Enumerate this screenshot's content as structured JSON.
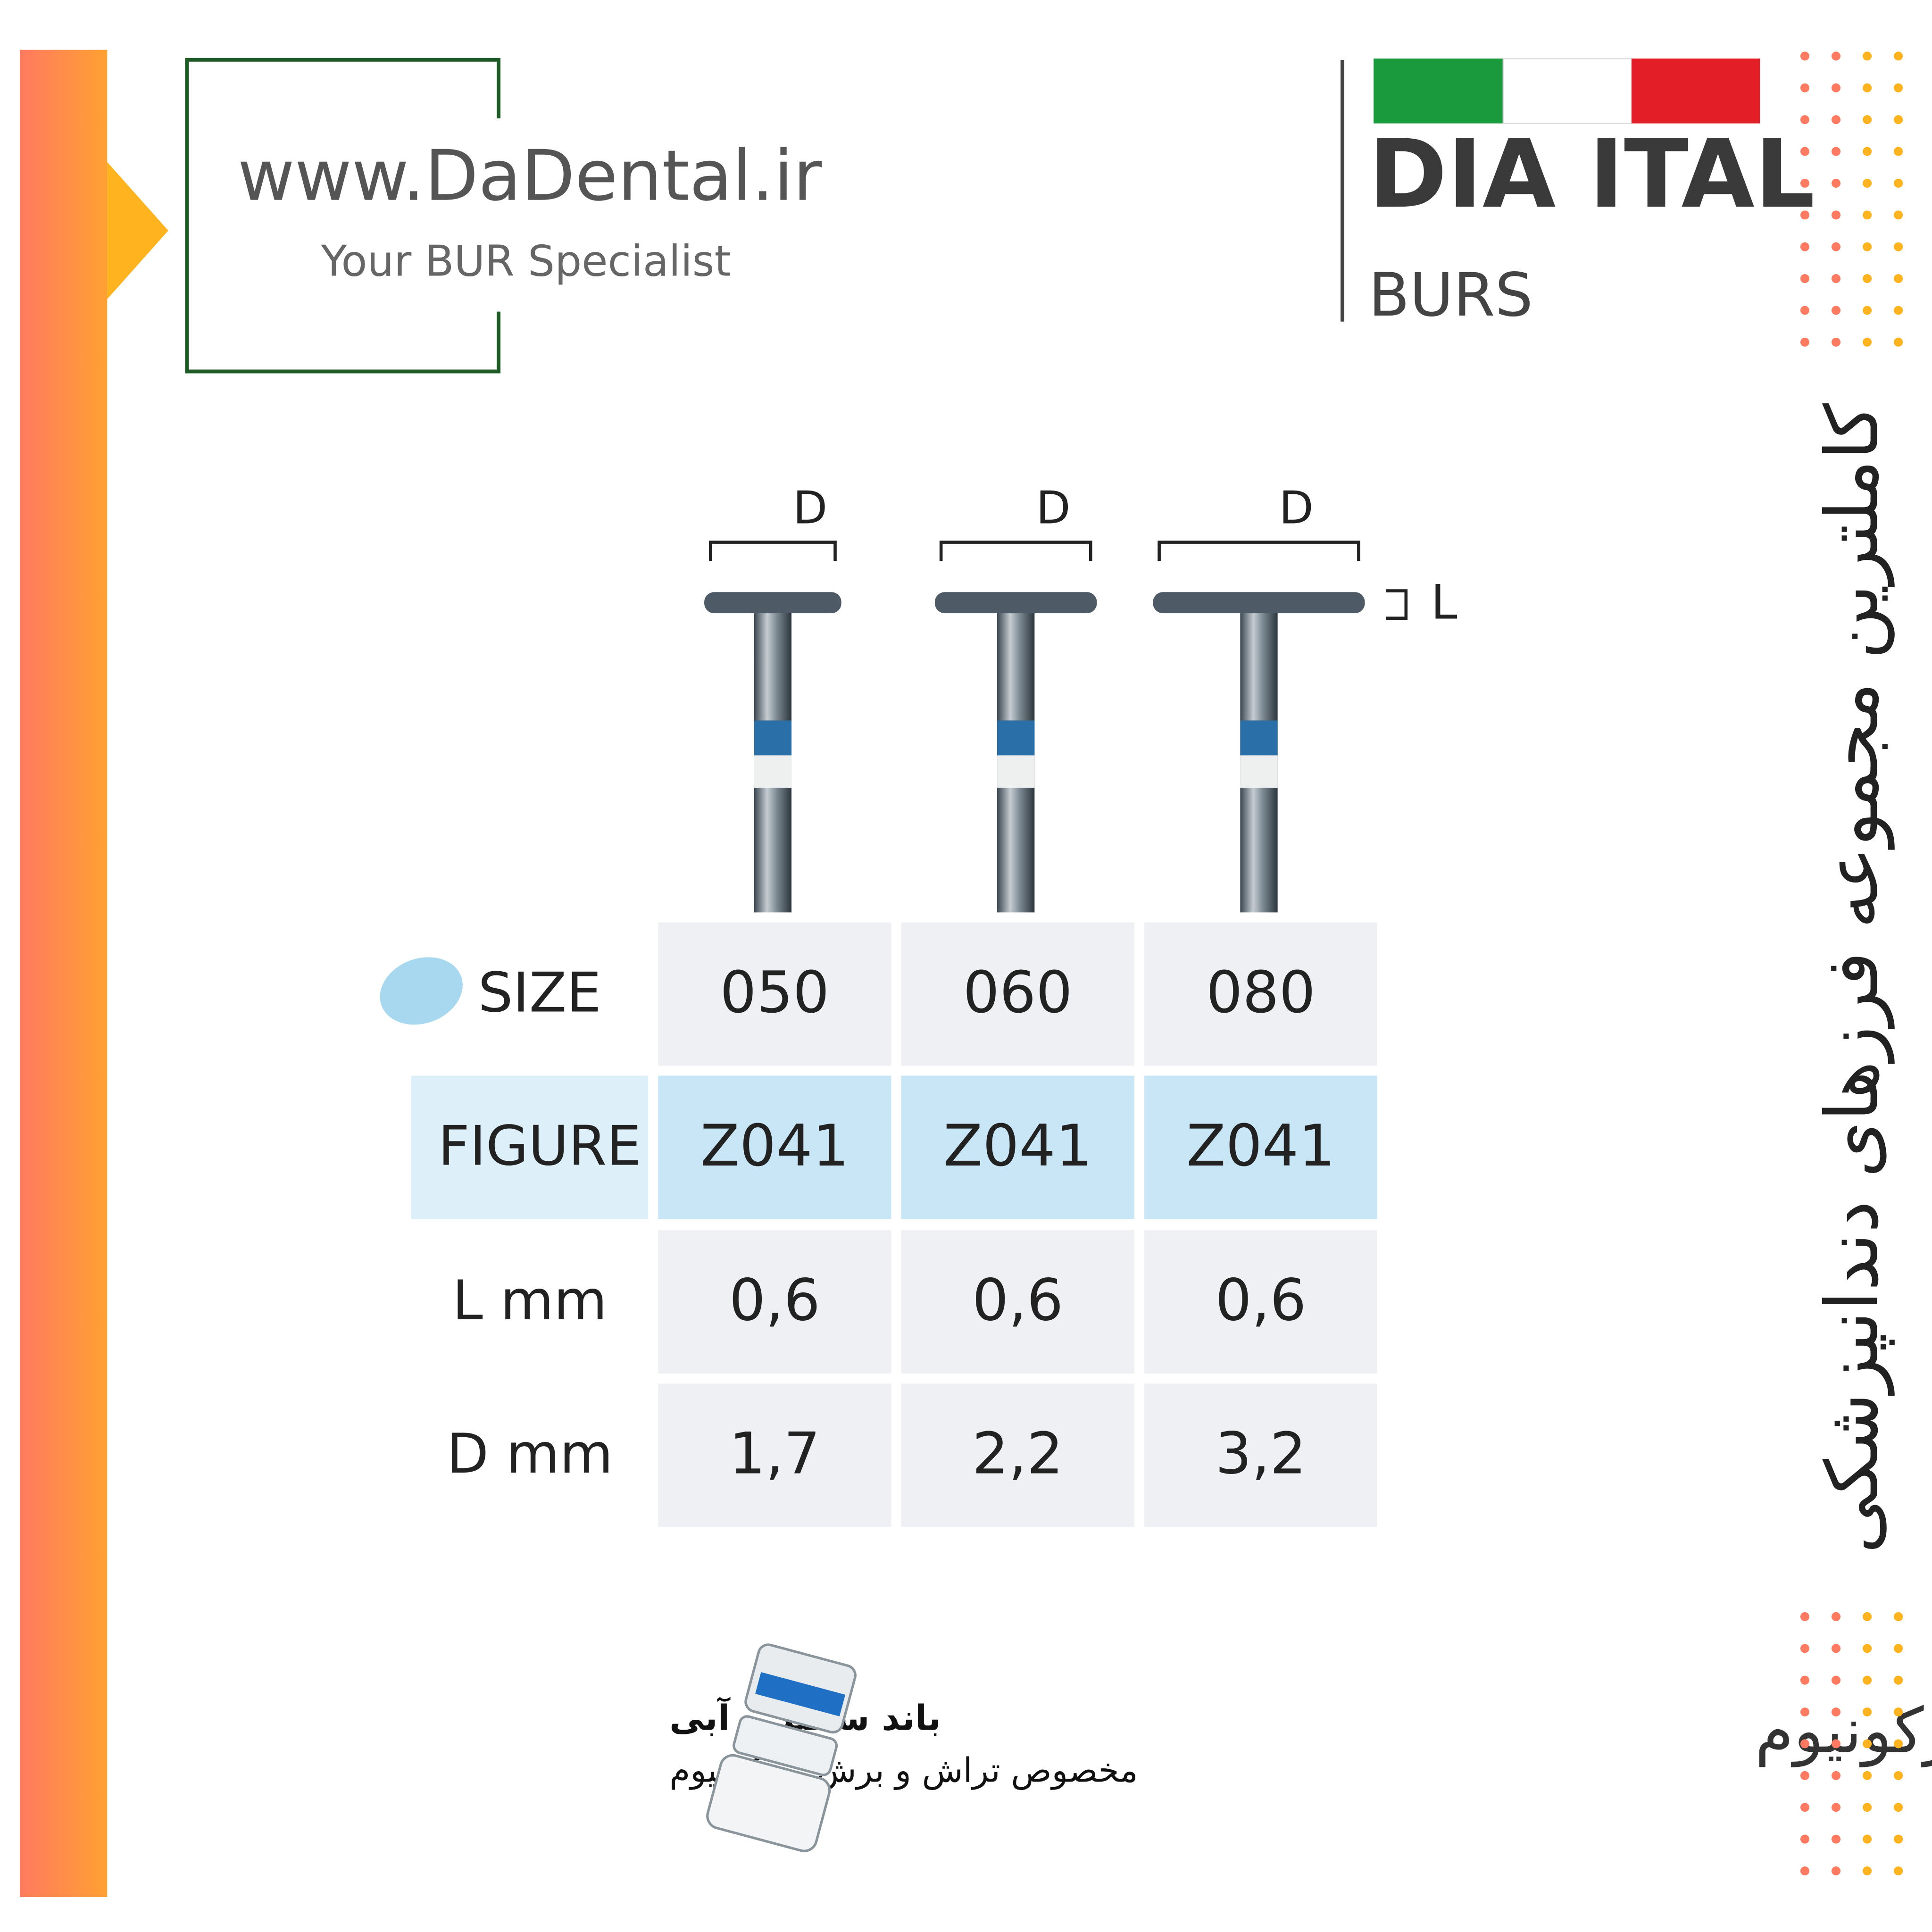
{
  "logo": {
    "website": "www.DaDental.ir",
    "tagline": "Your BUR Specialist"
  },
  "brand": {
    "name": "DIA ITAL",
    "subtitle": "BURS"
  },
  "side_title": "کاملترین مجموعه فرزهای دندانپزشکی",
  "diagram": {
    "dimension_labels": [
      "D",
      "D",
      "D"
    ],
    "thickness_label": "L"
  },
  "table": {
    "rows": [
      [
        "SIZE",
        "050",
        "060",
        "080"
      ],
      [
        "FIGURE",
        "Z041",
        "Z041",
        "Z041"
      ],
      [
        "L mm",
        "0,6",
        "0,6",
        "0,6"
      ],
      [
        "D mm",
        "1,7",
        "2,2",
        "3,2"
      ]
    ]
  },
  "band_note": {
    "title": "باند سفید و آبی",
    "text": "مخصوص تراش و برش زیرکونیوم"
  },
  "product_title": "دیسک الماسی زیرکونیوم"
}
